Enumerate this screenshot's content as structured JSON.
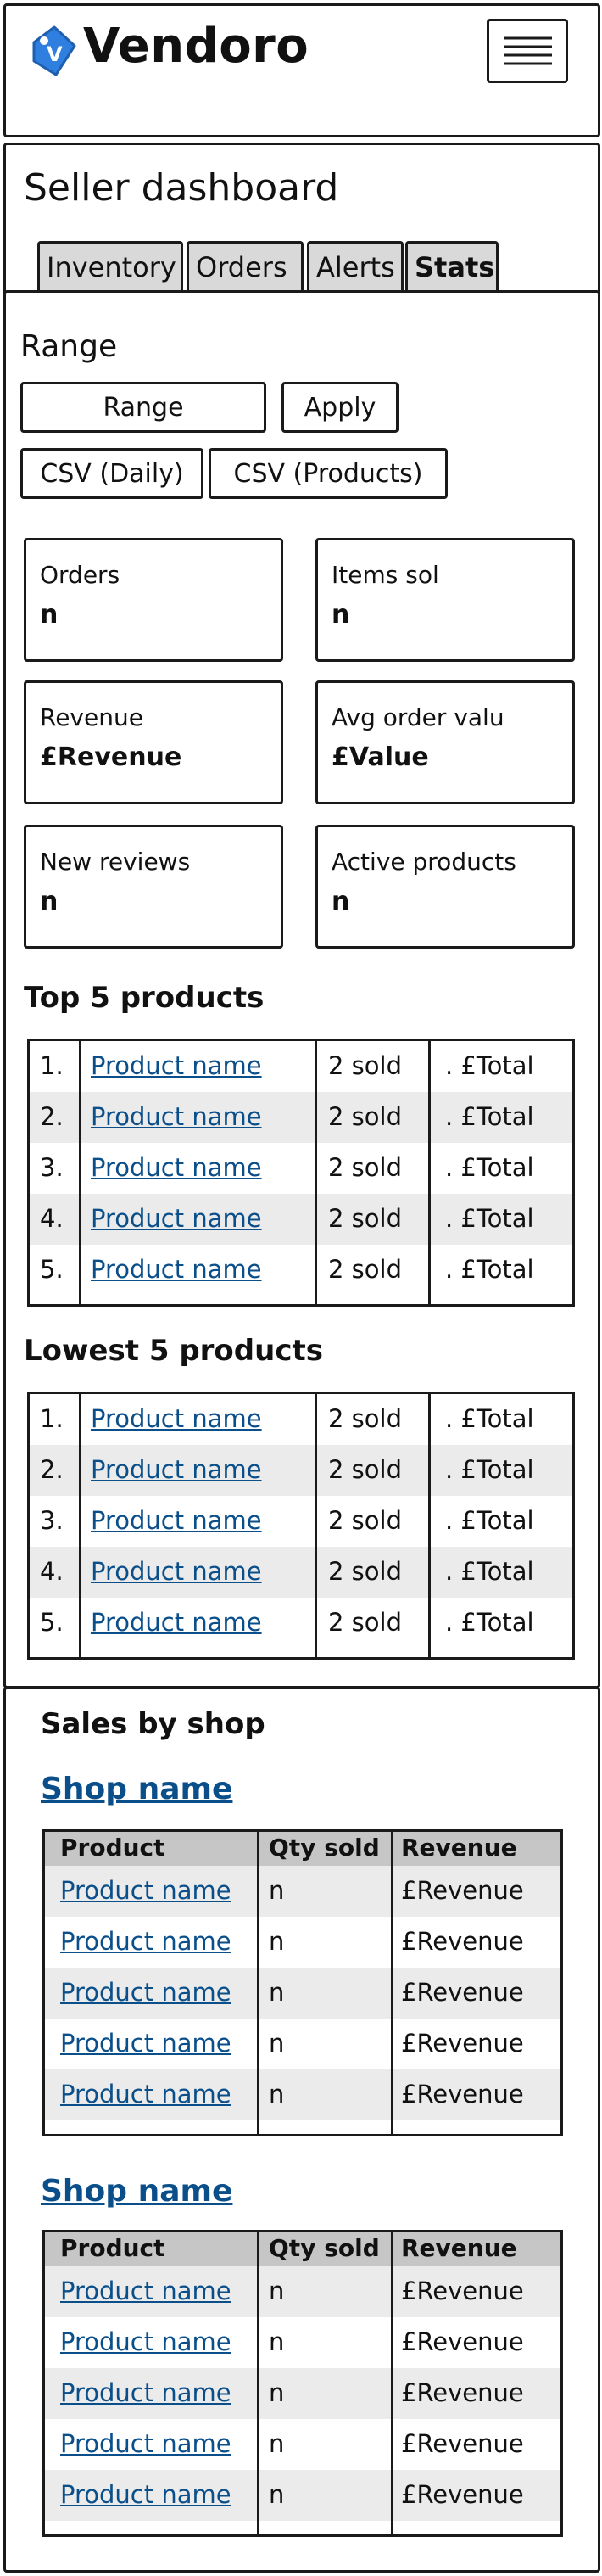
{
  "header": {
    "brand": "Vendoro",
    "logo_letter": "V"
  },
  "dashboard": {
    "title": "Seller dashboard",
    "tabs": [
      {
        "label": "Inventory",
        "active": false
      },
      {
        "label": "Orders",
        "active": false
      },
      {
        "label": "Alerts",
        "active": false
      },
      {
        "label": "Stats",
        "active": true
      }
    ]
  },
  "range": {
    "heading": "Range",
    "range_button": "Range",
    "apply_button": "Apply",
    "csv_daily": "CSV (Daily)",
    "csv_products": "CSV (Products)"
  },
  "cards": [
    {
      "label": "Orders",
      "value": "n"
    },
    {
      "label": "Items sol",
      "value": "n"
    },
    {
      "label": "Revenue",
      "value": "£Revenue"
    },
    {
      "label": "Avg order valu",
      "value": "£Value"
    },
    {
      "label": "New reviews",
      "value": "n"
    },
    {
      "label": "Active products",
      "value": "n"
    }
  ],
  "top_products": {
    "heading": "Top 5 products",
    "rows": [
      {
        "rank": "1.",
        "name": "Product name",
        "sold": "2 sold",
        "total": ".  £Total"
      },
      {
        "rank": "2.",
        "name": "Product name",
        "sold": "2 sold",
        "total": ".  £Total"
      },
      {
        "rank": "3.",
        "name": "Product name",
        "sold": "2 sold",
        "total": ".  £Total"
      },
      {
        "rank": "4.",
        "name": "Product name",
        "sold": "2 sold",
        "total": ".  £Total"
      },
      {
        "rank": "5.",
        "name": "Product name",
        "sold": "2 sold",
        "total": ".  £Total"
      }
    ]
  },
  "lowest_products": {
    "heading": "Lowest 5 products",
    "rows": [
      {
        "rank": "1.",
        "name": "Product name",
        "sold": "2 sold",
        "total": ".  £Total"
      },
      {
        "rank": "2.",
        "name": "Product name",
        "sold": "2 sold",
        "total": ".  £Total"
      },
      {
        "rank": "3.",
        "name": "Product name",
        "sold": "2 sold",
        "total": ".  £Total"
      },
      {
        "rank": "4.",
        "name": "Product name",
        "sold": "2 sold",
        "total": ".  £Total"
      },
      {
        "rank": "5.",
        "name": "Product name",
        "sold": "2 sold",
        "total": ".  £Total"
      }
    ]
  },
  "sales_by_shop": {
    "heading": "Sales by shop",
    "columns": [
      "Product",
      "Qty sold",
      "Revenue"
    ],
    "shops": [
      {
        "name": "Shop name",
        "rows": [
          {
            "product": "Product name",
            "qty": "n",
            "revenue": "£Revenue"
          },
          {
            "product": "Product name",
            "qty": "n",
            "revenue": "£Revenue"
          },
          {
            "product": "Product name",
            "qty": "n",
            "revenue": "£Revenue"
          },
          {
            "product": "Product name",
            "qty": "n",
            "revenue": "£Revenue"
          },
          {
            "product": "Product name",
            "qty": "n",
            "revenue": "£Revenue"
          }
        ]
      },
      {
        "name": "Shop name",
        "rows": [
          {
            "product": "Product name",
            "qty": "n",
            "revenue": "£Revenue"
          },
          {
            "product": "Product name",
            "qty": "n",
            "revenue": "£Revenue"
          },
          {
            "product": "Product name",
            "qty": "n",
            "revenue": "£Revenue"
          },
          {
            "product": "Product name",
            "qty": "n",
            "revenue": "£Revenue"
          },
          {
            "product": "Product name",
            "qty": "n",
            "revenue": "£Revenue"
          }
        ]
      }
    ]
  },
  "colors": {
    "link": "#0b4f8a",
    "logo": "#2f7fe0",
    "tab_bg": "#d9d9d9",
    "row_alt": "#ebebeb",
    "table_head": "#c6c6c6"
  }
}
